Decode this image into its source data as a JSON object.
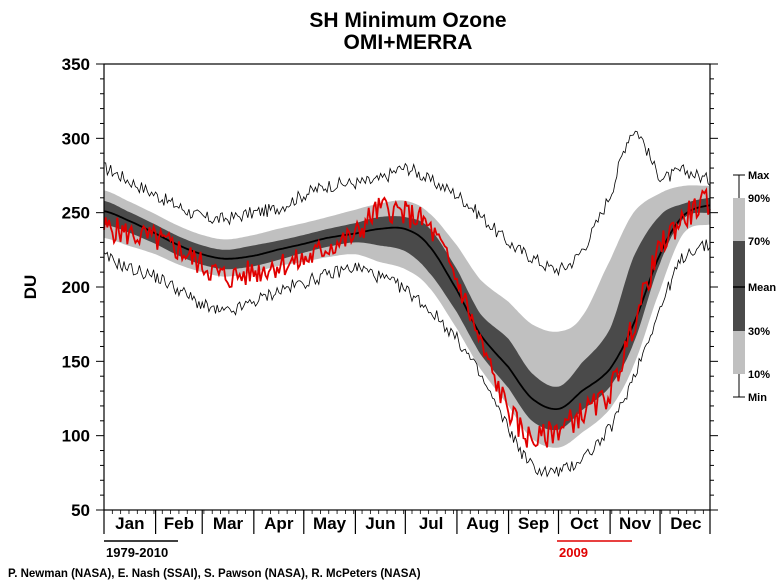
{
  "chart_data": {
    "type": "area",
    "title": "SH Minimum Ozone",
    "subtitle": "OMI+MERRA",
    "ylabel": "DU",
    "xlabel": "",
    "ylim": [
      50,
      350
    ],
    "yticks": [
      50,
      100,
      150,
      200,
      250,
      300,
      350
    ],
    "xlim_day": [
      1,
      365
    ],
    "months": [
      "Jan",
      "Feb",
      "Mar",
      "Apr",
      "May",
      "Jun",
      "Jul",
      "Aug",
      "Sep",
      "Oct",
      "Nov",
      "Dec"
    ],
    "grid": false,
    "legend": {
      "placement": "right",
      "labels": [
        "Max",
        "90%",
        "70%",
        "Mean",
        "30%",
        "10%",
        "Min"
      ],
      "climatology_label": "1979-2010",
      "year_label": "2009",
      "year_color": "#e00000"
    },
    "colors": {
      "band_10_90": "#c0c0c0",
      "band_30_70": "#4a4a4a",
      "mean": "#000000",
      "extremes": "#000000",
      "year": "#e00000"
    },
    "credits": "P. Newman (NASA), E. Nash (SSAI), S. Pawson (NASA), R. McPeters (NASA)",
    "x": [
      1,
      15,
      32,
      46,
      60,
      74,
      91,
      105,
      121,
      135,
      152,
      166,
      182,
      196,
      213,
      227,
      244,
      258,
      274,
      288,
      305,
      319,
      335,
      349,
      365
    ],
    "series": [
      {
        "name": "Min",
        "values": [
          220,
          213,
          207,
          198,
          188,
          183,
          190,
          197,
          203,
          208,
          213,
          207,
          198,
          185,
          165,
          140,
          105,
          80,
          76,
          85,
          105,
          140,
          185,
          220,
          228
        ]
      },
      {
        "name": "10%",
        "values": [
          233,
          228,
          222,
          215,
          210,
          207,
          210,
          214,
          217,
          220,
          222,
          217,
          212,
          200,
          172,
          145,
          120,
          98,
          92,
          102,
          118,
          147,
          198,
          236,
          242
        ]
      },
      {
        "name": "30%",
        "values": [
          242,
          237,
          229,
          221,
          215,
          212,
          214,
          218,
          223,
          227,
          230,
          228,
          224,
          210,
          183,
          155,
          132,
          110,
          104,
          117,
          133,
          162,
          216,
          246,
          250
        ]
      },
      {
        "name": "Mean",
        "values": [
          251,
          245,
          236,
          228,
          222,
          219,
          221,
          225,
          229,
          233,
          236,
          239,
          239,
          228,
          198,
          168,
          146,
          125,
          118,
          130,
          145,
          175,
          222,
          248,
          255
        ]
      },
      {
        "name": "70%",
        "values": [
          258,
          251,
          242,
          234,
          228,
          225,
          228,
          231,
          235,
          239,
          243,
          247,
          247,
          240,
          212,
          182,
          165,
          142,
          133,
          149,
          172,
          220,
          248,
          256,
          260
        ]
      },
      {
        "name": "90%",
        "values": [
          265,
          258,
          249,
          241,
          235,
          232,
          235,
          239,
          243,
          247,
          252,
          256,
          258,
          250,
          228,
          205,
          190,
          175,
          170,
          180,
          218,
          250,
          263,
          268,
          268
        ]
      },
      {
        "name": "Max",
        "values": [
          280,
          272,
          262,
          254,
          247,
          246,
          250,
          253,
          262,
          268,
          270,
          272,
          280,
          272,
          262,
          248,
          230,
          220,
          212,
          225,
          262,
          305,
          275,
          278,
          272
        ]
      },
      {
        "name": "2009",
        "values": [
          240,
          236,
          232,
          225,
          215,
          207,
          210,
          215,
          218,
          227,
          235,
          252,
          249,
          240,
          205,
          162,
          118,
          98,
          105,
          115,
          130,
          175,
          225,
          246,
          258
        ]
      }
    ]
  }
}
